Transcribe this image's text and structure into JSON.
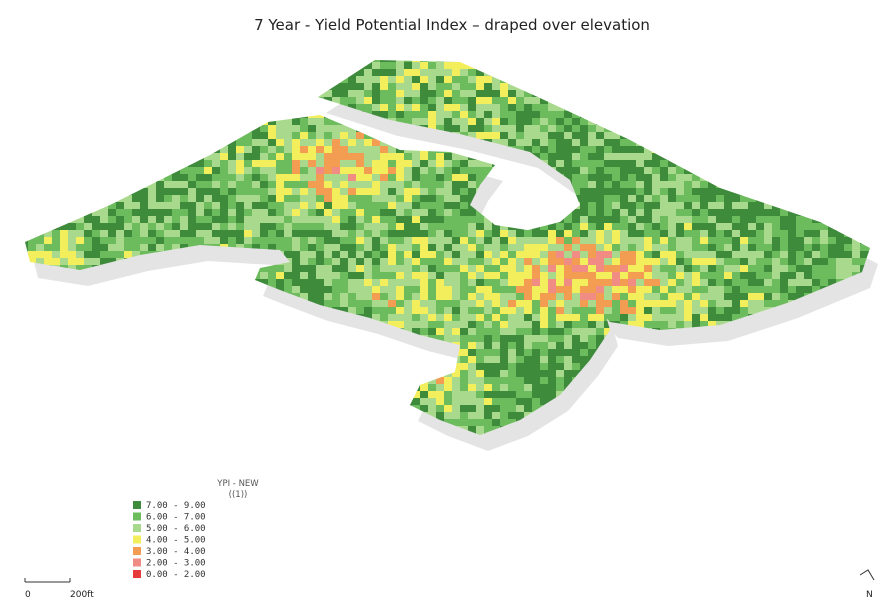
{
  "title": "7 Year - Yield Potential Index – draped over elevation",
  "legend": {
    "title": "YPI - NEW",
    "subtitle": "((1))",
    "items": [
      {
        "label": "7.00 - 9.00",
        "color": "#3f8b3c"
      },
      {
        "label": "6.00 - 7.00",
        "color": "#6cbb5c"
      },
      {
        "label": "5.00 - 6.00",
        "color": "#a9d98c"
      },
      {
        "label": "4.00 - 5.00",
        "color": "#f3ee5c"
      },
      {
        "label": "3.00 - 4.00",
        "color": "#f29d52"
      },
      {
        "label": "2.00 - 3.00",
        "color": "#f08c84"
      },
      {
        "label": "0.00 - 2.00",
        "color": "#e53b3b"
      }
    ]
  },
  "scale_bar": {
    "start": "0",
    "end": "200ft"
  },
  "north": "N"
}
